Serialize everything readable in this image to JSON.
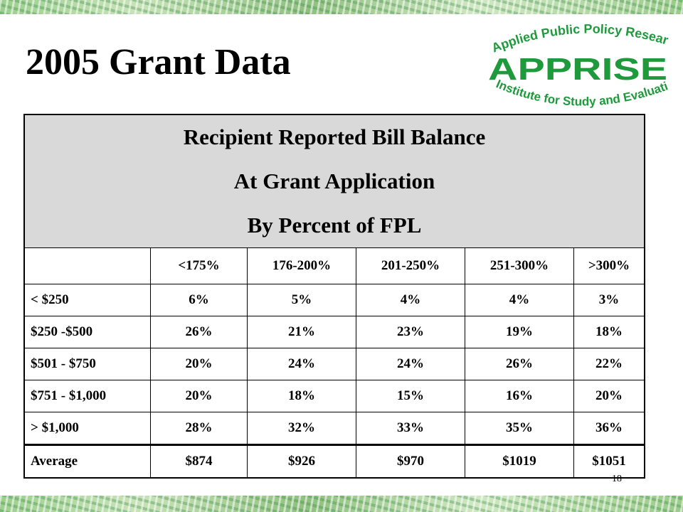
{
  "slide": {
    "title": "2005 Grant Data",
    "page_number": "18"
  },
  "logo": {
    "top_text": "Applied Public Policy Research",
    "name": "APPRISE",
    "bottom_text": "Institute for Study and Evaluation",
    "color": "#1e9a3c"
  },
  "table": {
    "caption": [
      "Recipient Reported Bill Balance",
      "At Grant Application",
      "By Percent of FPL"
    ],
    "columns": [
      "",
      "<175%",
      "176-200%",
      "201-250%",
      "251-300%",
      ">300%"
    ],
    "rows": [
      [
        "< $250",
        "6%",
        "5%",
        "4%",
        "4%",
        "3%"
      ],
      [
        "$250 -$500",
        "26%",
        "21%",
        "23%",
        "19%",
        "18%"
      ],
      [
        "$501 - $750",
        "20%",
        "24%",
        "24%",
        "26%",
        "22%"
      ],
      [
        "$751 - $1,000",
        "20%",
        "18%",
        "15%",
        "16%",
        "20%"
      ],
      [
        "> $1,000",
        "28%",
        "32%",
        "33%",
        "35%",
        "36%"
      ],
      [
        "Average",
        "$874",
        "$926",
        "$970",
        "$1019",
        "$1051"
      ]
    ]
  },
  "colors": {
    "caption_background": "#d9d9d9",
    "band_green": "#9ccf8f"
  }
}
